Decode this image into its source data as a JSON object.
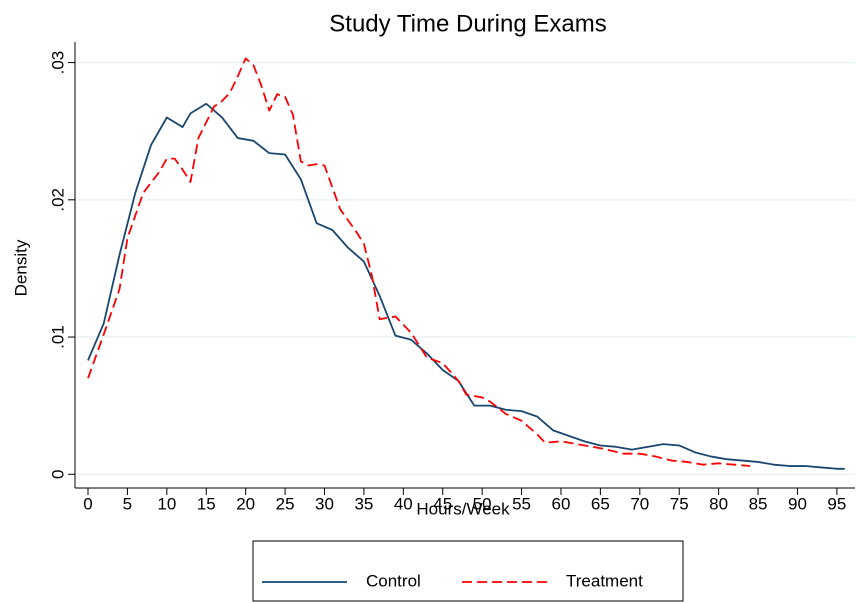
{
  "chart_data": {
    "type": "line",
    "title": "Study Time During Exams",
    "xlabel": "Hours/Week",
    "ylabel": "Density",
    "xlim": [
      -1.65,
      97.3
    ],
    "ylim": [
      -0.001,
      0.0315
    ],
    "xticks": [
      0,
      5,
      10,
      15,
      20,
      25,
      30,
      35,
      40,
      45,
      50,
      55,
      60,
      65,
      70,
      75,
      80,
      85,
      90,
      95
    ],
    "yticks": [
      0,
      {
        "value": 0.01,
        "label": ".01"
      },
      {
        "value": 0.02,
        "label": ".02"
      },
      {
        "value": 0.03,
        "label": ".03"
      }
    ],
    "grid": true,
    "legend": "bottom",
    "series": [
      {
        "name": "Control",
        "color": "#1a476f",
        "dash": false,
        "x": [
          0,
          2,
          4,
          6,
          8,
          10,
          12,
          13,
          15,
          17,
          19,
          21,
          23,
          25,
          27,
          29,
          31,
          33,
          35,
          37,
          39,
          41,
          43,
          45,
          47,
          49,
          51,
          53,
          55,
          57,
          59,
          61,
          63,
          65,
          67,
          69,
          71,
          73,
          75,
          77,
          79,
          81,
          83,
          85,
          87,
          89,
          91,
          93,
          95,
          96
        ],
        "values": [
          0.0083,
          0.011,
          0.016,
          0.0205,
          0.024,
          0.026,
          0.0253,
          0.0263,
          0.027,
          0.026,
          0.0245,
          0.0243,
          0.0234,
          0.0233,
          0.0215,
          0.0183,
          0.0178,
          0.0165,
          0.0155,
          0.013,
          0.0101,
          0.0098,
          0.0088,
          0.0076,
          0.0068,
          0.005,
          0.005,
          0.0047,
          0.0046,
          0.0042,
          0.0032,
          0.0028,
          0.0024,
          0.0021,
          0.002,
          0.0018,
          0.002,
          0.0022,
          0.0021,
          0.0016,
          0.0013,
          0.0011,
          0.001,
          0.0009,
          0.0007,
          0.0006,
          0.0006,
          0.0005,
          0.0004,
          0.0004
        ]
      },
      {
        "name": "Treatment",
        "color": "#ff0000",
        "dash": true,
        "x": [
          0,
          2,
          4,
          5,
          7,
          9,
          10,
          11,
          12,
          13,
          14,
          16,
          17,
          18,
          19,
          20,
          21,
          22,
          23,
          24,
          25,
          26,
          27,
          28,
          29,
          30,
          32,
          34,
          35,
          36,
          37,
          39,
          41,
          43,
          45,
          47,
          48,
          50,
          51,
          53,
          55,
          57,
          58,
          60,
          62,
          65,
          68,
          70,
          72,
          74,
          76,
          78,
          80,
          82,
          84
        ],
        "values": [
          0.007,
          0.0102,
          0.0135,
          0.0172,
          0.0205,
          0.022,
          0.023,
          0.023,
          0.0222,
          0.0213,
          0.0245,
          0.0268,
          0.0272,
          0.0278,
          0.029,
          0.0303,
          0.0298,
          0.0283,
          0.0265,
          0.0277,
          0.0275,
          0.0262,
          0.0228,
          0.0225,
          0.0226,
          0.0225,
          0.0193,
          0.0177,
          0.0168,
          0.0145,
          0.0113,
          0.0115,
          0.0103,
          0.0085,
          0.0081,
          0.0068,
          0.0058,
          0.0056,
          0.0053,
          0.0044,
          0.0039,
          0.0029,
          0.0023,
          0.0024,
          0.0022,
          0.0019,
          0.0015,
          0.0015,
          0.0013,
          0.001,
          0.0009,
          0.0007,
          0.0008,
          0.0007,
          0.0006
        ]
      }
    ]
  }
}
